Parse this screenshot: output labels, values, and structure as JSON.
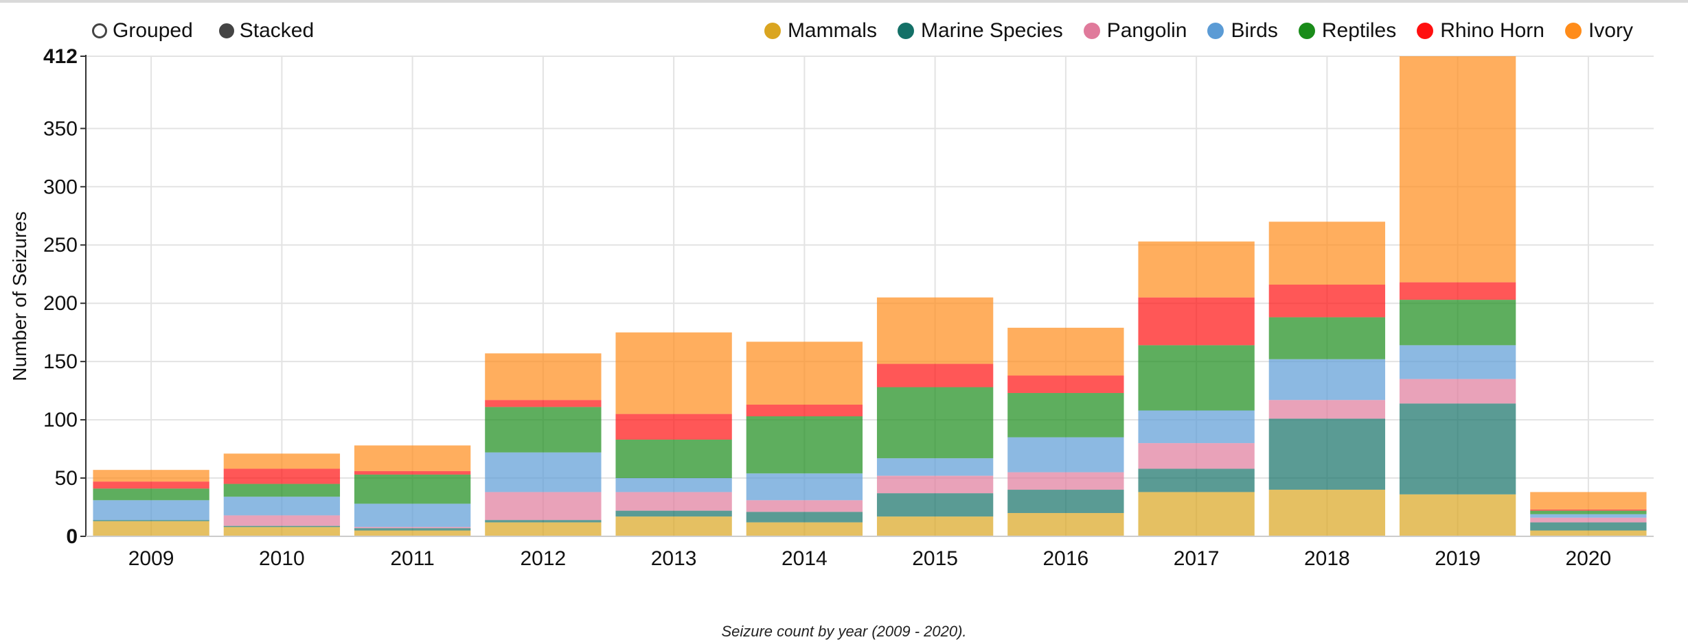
{
  "controls": {
    "grouped_label": "Grouped",
    "stacked_label": "Stacked",
    "selected": "Stacked"
  },
  "legend": [
    {
      "label": "Mammals",
      "color": "#DAA520"
    },
    {
      "label": "Marine Species",
      "color": "#147067"
    },
    {
      "label": "Pangolin",
      "color": "#E07A9B"
    },
    {
      "label": "Birds",
      "color": "#5B9BD5"
    },
    {
      "label": "Reptiles",
      "color": "#1A8C1A"
    },
    {
      "label": "Rhino Horn",
      "color": "#FF1010"
    },
    {
      "label": "Ivory",
      "color": "#FF8C1A"
    }
  ],
  "caption": "Seizure count by year (2009 - 2020).",
  "chart_data": {
    "type": "bar",
    "stacked": true,
    "ylabel": "Number of Seizures",
    "xlabel": "",
    "ylim": [
      0,
      412
    ],
    "yticks": [
      0,
      50,
      100,
      150,
      200,
      250,
      300,
      350,
      412
    ],
    "grid": true,
    "legend_position": "top-right",
    "categories": [
      "2009",
      "2010",
      "2011",
      "2012",
      "2013",
      "2014",
      "2015",
      "2016",
      "2017",
      "2018",
      "2019",
      "2020"
    ],
    "series": [
      {
        "name": "Mammals",
        "color": "#DAA520",
        "values": [
          13,
          8,
          5,
          12,
          17,
          12,
          17,
          20,
          38,
          40,
          36,
          5
        ]
      },
      {
        "name": "Marine Species",
        "color": "#147067",
        "values": [
          1,
          1,
          2,
          2,
          5,
          9,
          20,
          20,
          20,
          61,
          78,
          7
        ]
      },
      {
        "name": "Pangolin",
        "color": "#E07A9B",
        "values": [
          0,
          9,
          1,
          24,
          16,
          10,
          15,
          15,
          22,
          16,
          21,
          4
        ]
      },
      {
        "name": "Birds",
        "color": "#5B9BD5",
        "values": [
          17,
          16,
          20,
          34,
          12,
          23,
          15,
          30,
          28,
          35,
          29,
          3
        ]
      },
      {
        "name": "Reptiles",
        "color": "#1A8C1A",
        "values": [
          10,
          11,
          25,
          39,
          33,
          49,
          61,
          38,
          56,
          36,
          39,
          3
        ]
      },
      {
        "name": "Rhino Horn",
        "color": "#FF1010",
        "values": [
          6,
          13,
          3,
          6,
          22,
          10,
          20,
          15,
          41,
          28,
          15,
          1
        ]
      },
      {
        "name": "Ivory",
        "color": "#FF8C1A",
        "values": [
          10,
          13,
          22,
          40,
          70,
          54,
          57,
          41,
          48,
          54,
          194,
          15
        ]
      }
    ]
  }
}
